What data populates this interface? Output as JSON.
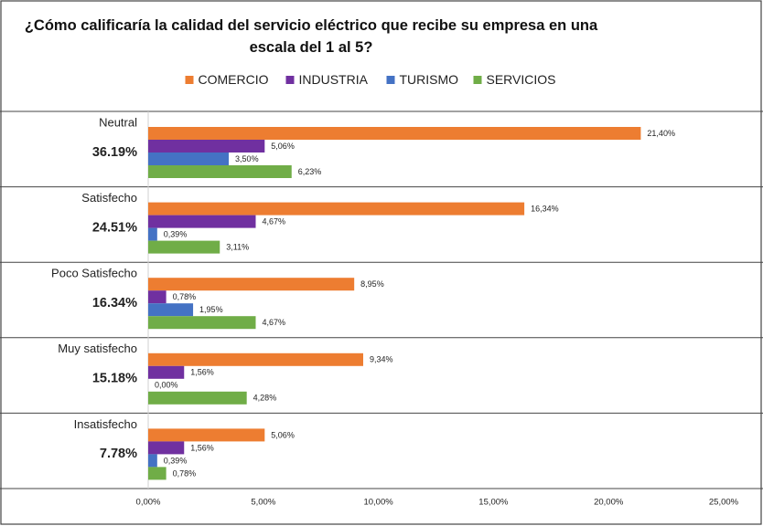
{
  "chart_data": {
    "type": "bar",
    "orientation": "horizontal",
    "title": "¿Cómo calificaría la calidad del servicio eléctrico que recibe su empresa en una escala del 1 al 5?",
    "categories": [
      "Neutral",
      "Satisfecho",
      "Poco Satisfecho",
      "Muy satisfecho",
      "Insatisfecho"
    ],
    "category_totals": [
      "36.19%",
      "24.51%",
      "16.34%",
      "15.18%",
      "7.78%"
    ],
    "series": [
      {
        "name": "COMERCIO",
        "color": "#ed7d31",
        "values": [
          21.4,
          16.34,
          8.95,
          9.34,
          5.06
        ],
        "value_labels": [
          "21,40%",
          "16,34%",
          "8,95%",
          "9,34%",
          "5,06%"
        ]
      },
      {
        "name": "INDUSTRIA",
        "color": "#7030a0",
        "values": [
          5.06,
          4.67,
          0.78,
          1.56,
          1.56
        ],
        "value_labels": [
          "5,06%",
          "4,67%",
          "0,78%",
          "1,56%",
          "1,56%"
        ]
      },
      {
        "name": "TURISMO",
        "color": "#4472c4",
        "values": [
          3.5,
          0.39,
          1.95,
          0.0,
          0.39
        ],
        "value_labels": [
          "3,50%",
          "0,39%",
          "1,95%",
          "0,00%",
          "0,39%"
        ]
      },
      {
        "name": "SERVICIOS",
        "color": "#70ad47",
        "values": [
          6.23,
          3.11,
          4.67,
          4.28,
          0.78
        ],
        "value_labels": [
          "6,23%",
          "3,11%",
          "4,67%",
          "4,28%",
          "0,78%"
        ]
      }
    ],
    "xlim": [
      0,
      25
    ],
    "xticks": [
      {
        "value": 0,
        "label": "0,00%"
      },
      {
        "value": 5,
        "label": "5,00%"
      },
      {
        "value": 10,
        "label": "10,00%"
      },
      {
        "value": 15,
        "label": "15,00%"
      },
      {
        "value": 20,
        "label": "20,00%"
      },
      {
        "value": 25,
        "label": "25,00%"
      }
    ]
  }
}
